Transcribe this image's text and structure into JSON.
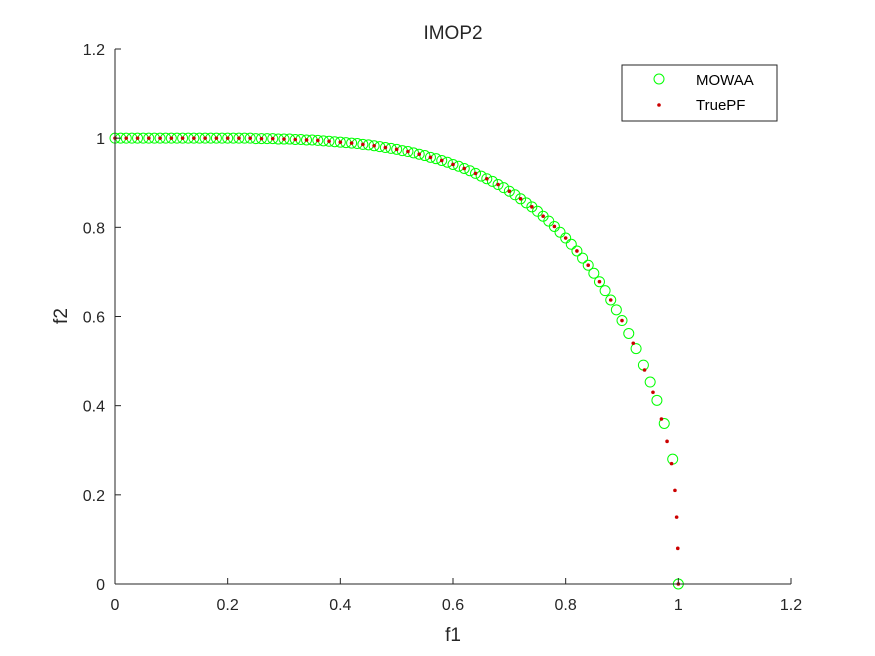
{
  "chart_data": {
    "type": "scatter",
    "title": "IMOP2",
    "xlabel": "f1",
    "ylabel": "f2",
    "xlim": [
      0,
      1.2
    ],
    "ylim": [
      0,
      1.2
    ],
    "xticks": [
      0,
      0.2,
      0.4,
      0.6,
      0.8,
      1,
      1.2
    ],
    "yticks": [
      0,
      0.2,
      0.4,
      0.6,
      0.8,
      1,
      1.2
    ],
    "xtick_labels": [
      "0",
      "0.2",
      "0.4",
      "0.6",
      "0.8",
      "1",
      "1.2"
    ],
    "ytick_labels": [
      "0",
      "0.2",
      "0.4",
      "0.6",
      "0.8",
      "1",
      "1.2"
    ],
    "grid": false,
    "legend_position": "top-right",
    "series": [
      {
        "name": "MOWAA",
        "marker": "open-circle",
        "color": "#00ff00",
        "points": [
          [
            0.0,
            1.0
          ],
          [
            0.01,
            1.0
          ],
          [
            0.02,
            1.0
          ],
          [
            0.03,
            1.0
          ],
          [
            0.04,
            1.0
          ],
          [
            0.05,
            1.0
          ],
          [
            0.06,
            1.0
          ],
          [
            0.07,
            1.0
          ],
          [
            0.08,
            1.0
          ],
          [
            0.09,
            1.0
          ],
          [
            0.1,
            1.0
          ],
          [
            0.11,
            1.0
          ],
          [
            0.12,
            1.0
          ],
          [
            0.13,
            1.0
          ],
          [
            0.14,
            1.0
          ],
          [
            0.15,
            1.0
          ],
          [
            0.16,
            1.0
          ],
          [
            0.17,
            1.0
          ],
          [
            0.18,
            1.0
          ],
          [
            0.19,
            1.0
          ],
          [
            0.2,
            1.0
          ],
          [
            0.21,
            1.0
          ],
          [
            0.22,
            1.0
          ],
          [
            0.23,
            1.0
          ],
          [
            0.24,
            1.0
          ],
          [
            0.25,
            0.999
          ],
          [
            0.26,
            0.999
          ],
          [
            0.27,
            0.999
          ],
          [
            0.28,
            0.999
          ],
          [
            0.29,
            0.998
          ],
          [
            0.3,
            0.998
          ],
          [
            0.31,
            0.998
          ],
          [
            0.32,
            0.997
          ],
          [
            0.33,
            0.997
          ],
          [
            0.34,
            0.996
          ],
          [
            0.35,
            0.996
          ],
          [
            0.36,
            0.995
          ],
          [
            0.37,
            0.994
          ],
          [
            0.38,
            0.993
          ],
          [
            0.39,
            0.992
          ],
          [
            0.4,
            0.991
          ],
          [
            0.41,
            0.99
          ],
          [
            0.42,
            0.989
          ],
          [
            0.43,
            0.988
          ],
          [
            0.44,
            0.986
          ],
          [
            0.45,
            0.985
          ],
          [
            0.46,
            0.983
          ],
          [
            0.47,
            0.981
          ],
          [
            0.48,
            0.979
          ],
          [
            0.49,
            0.977
          ],
          [
            0.5,
            0.975
          ],
          [
            0.51,
            0.972
          ],
          [
            0.52,
            0.97
          ],
          [
            0.53,
            0.967
          ],
          [
            0.54,
            0.964
          ],
          [
            0.55,
            0.961
          ],
          [
            0.56,
            0.957
          ],
          [
            0.57,
            0.954
          ],
          [
            0.58,
            0.95
          ],
          [
            0.59,
            0.946
          ],
          [
            0.6,
            0.941
          ],
          [
            0.61,
            0.937
          ],
          [
            0.62,
            0.932
          ],
          [
            0.63,
            0.927
          ],
          [
            0.64,
            0.921
          ],
          [
            0.65,
            0.915
          ],
          [
            0.66,
            0.909
          ],
          [
            0.67,
            0.903
          ],
          [
            0.68,
            0.896
          ],
          [
            0.69,
            0.889
          ],
          [
            0.7,
            0.881
          ],
          [
            0.71,
            0.873
          ],
          [
            0.72,
            0.864
          ],
          [
            0.73,
            0.855
          ],
          [
            0.74,
            0.846
          ],
          [
            0.75,
            0.836
          ],
          [
            0.76,
            0.825
          ],
          [
            0.77,
            0.814
          ],
          [
            0.78,
            0.802
          ],
          [
            0.79,
            0.789
          ],
          [
            0.8,
            0.776
          ],
          [
            0.81,
            0.762
          ],
          [
            0.82,
            0.747
          ],
          [
            0.83,
            0.731
          ],
          [
            0.84,
            0.715
          ],
          [
            0.85,
            0.697
          ],
          [
            0.86,
            0.678
          ],
          [
            0.87,
            0.658
          ],
          [
            0.88,
            0.637
          ],
          [
            0.89,
            0.615
          ],
          [
            0.9,
            0.591
          ],
          [
            0.912,
            0.562
          ],
          [
            0.925,
            0.528
          ],
          [
            0.938,
            0.491
          ],
          [
            0.95,
            0.453
          ],
          [
            0.962,
            0.412
          ],
          [
            0.975,
            0.36
          ],
          [
            0.99,
            0.28
          ],
          [
            1.0,
            0.0
          ]
        ]
      },
      {
        "name": "TruePF",
        "marker": "dot",
        "color": "#cc0000",
        "points": [
          [
            0.0,
            1.0
          ],
          [
            0.02,
            1.0
          ],
          [
            0.04,
            1.0
          ],
          [
            0.06,
            1.0
          ],
          [
            0.08,
            1.0
          ],
          [
            0.1,
            1.0
          ],
          [
            0.12,
            1.0
          ],
          [
            0.14,
            1.0
          ],
          [
            0.16,
            1.0
          ],
          [
            0.18,
            1.0
          ],
          [
            0.2,
            1.0
          ],
          [
            0.22,
            1.0
          ],
          [
            0.24,
            1.0
          ],
          [
            0.26,
            0.999
          ],
          [
            0.28,
            0.999
          ],
          [
            0.3,
            0.998
          ],
          [
            0.32,
            0.997
          ],
          [
            0.34,
            0.996
          ],
          [
            0.36,
            0.995
          ],
          [
            0.38,
            0.993
          ],
          [
            0.4,
            0.991
          ],
          [
            0.42,
            0.989
          ],
          [
            0.44,
            0.986
          ],
          [
            0.46,
            0.983
          ],
          [
            0.48,
            0.979
          ],
          [
            0.5,
            0.975
          ],
          [
            0.52,
            0.97
          ],
          [
            0.54,
            0.964
          ],
          [
            0.56,
            0.957
          ],
          [
            0.58,
            0.95
          ],
          [
            0.6,
            0.941
          ],
          [
            0.62,
            0.932
          ],
          [
            0.64,
            0.921
          ],
          [
            0.66,
            0.909
          ],
          [
            0.68,
            0.896
          ],
          [
            0.7,
            0.881
          ],
          [
            0.72,
            0.864
          ],
          [
            0.74,
            0.846
          ],
          [
            0.76,
            0.825
          ],
          [
            0.78,
            0.802
          ],
          [
            0.8,
            0.776
          ],
          [
            0.82,
            0.747
          ],
          [
            0.84,
            0.715
          ],
          [
            0.86,
            0.678
          ],
          [
            0.88,
            0.637
          ],
          [
            0.9,
            0.591
          ],
          [
            0.92,
            0.54
          ],
          [
            0.94,
            0.48
          ],
          [
            0.955,
            0.43
          ],
          [
            0.97,
            0.37
          ],
          [
            0.98,
            0.32
          ],
          [
            0.988,
            0.27
          ],
          [
            0.994,
            0.21
          ],
          [
            0.997,
            0.15
          ],
          [
            0.999,
            0.08
          ],
          [
            1.0,
            0.0
          ]
        ]
      }
    ]
  }
}
